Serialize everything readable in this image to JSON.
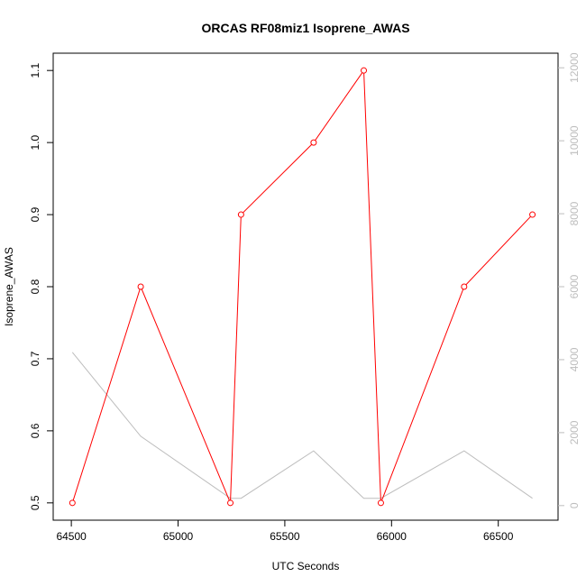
{
  "chart_data": {
    "type": "line",
    "title": "ORCAS RF08miz1 Isoprene_AWAS",
    "xlabel": "UTC Seconds",
    "ylabel": "Isoprene_AWAS",
    "y2label": "",
    "xlim": [
      64415,
      66780
    ],
    "ylim": [
      0.476,
      1.124
    ],
    "y2lim": [
      -400,
      12400
    ],
    "x_ticks": [
      64500,
      65000,
      65500,
      66000,
      66500
    ],
    "y_ticks": [
      0.5,
      0.6,
      0.7,
      0.8,
      0.9,
      1.0,
      1.1
    ],
    "y_tick_labels": [
      "0.5",
      "0.6",
      "0.7",
      "0.8",
      "0.9",
      "1.0",
      "1.1"
    ],
    "y2_ticks": [
      0,
      2000,
      4000,
      6000,
      8000,
      10000,
      12000
    ],
    "y2_tick_labels": [
      "0",
      "2000",
      "4000",
      "6000",
      "8000",
      "10000",
      "12000"
    ],
    "grid": false,
    "series": [
      {
        "name": "",
        "axis": "left",
        "color": "#ff0000",
        "marker": "open-circle",
        "x": [
          64505,
          64825,
          65245,
          65295,
          65635,
          65870,
          65950,
          66340,
          66660
        ],
        "y": [
          0.5,
          0.8,
          0.5,
          0.9,
          1.0,
          1.1,
          0.5,
          0.8,
          0.9
        ]
      },
      {
        "name": "",
        "axis": "right",
        "color": "#bdbdbd",
        "marker": "none",
        "x": [
          64505,
          64825,
          65245,
          65295,
          65635,
          65870,
          65950,
          66340,
          66660
        ],
        "y": [
          4200,
          1900,
          200,
          200,
          1500,
          200,
          200,
          1500,
          200
        ]
      }
    ]
  }
}
